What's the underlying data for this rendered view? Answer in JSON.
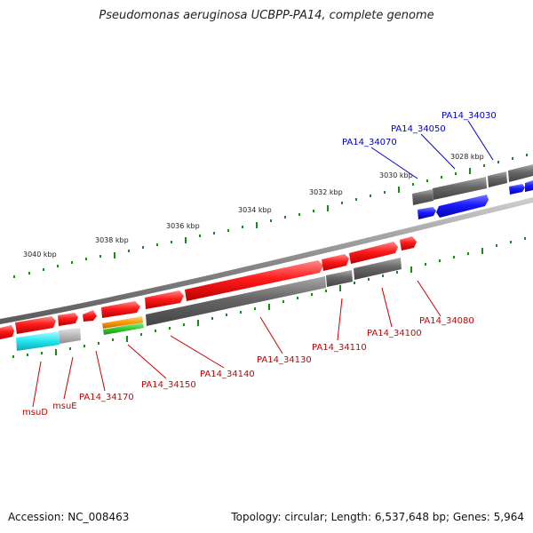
{
  "title": "Pseudomonas aeruginosa UCBPP-PA14, complete genome",
  "footer": {
    "accession": "Accession: NC_008463",
    "summary": "Topology: circular; Length: 6,537,648 bp; Genes: 5,964"
  },
  "colors": {
    "forward_cds": "#ff1a1a",
    "reverse_cds": "#666666",
    "blue_cds": "#1a1aff",
    "cyan_cds": "#22e6f0",
    "light_gray": "#b8b8b8",
    "orange": "#ff9900",
    "green_band": "#33cc33",
    "tick": "#1a8a1a",
    "backbone": "#8a8a8a",
    "label_red": "#cc0000",
    "label_blue": "#0000cc"
  },
  "scale": {
    "unit": "kbp",
    "labels": [
      "3028 kbp",
      "3030 kbp",
      "3032 kbp",
      "3034 kbp",
      "3036 kbp",
      "3038 kbp",
      "3040 kbp"
    ]
  },
  "gene_labels": {
    "blue": [
      "PA14_34030",
      "PA14_34050",
      "PA14_34070"
    ],
    "red": [
      "PA14_34080",
      "PA14_34100",
      "PA14_34110",
      "PA14_34130",
      "PA14_34140",
      "PA14_34150",
      "PA14_34170",
      "msuE",
      "msuD"
    ]
  }
}
